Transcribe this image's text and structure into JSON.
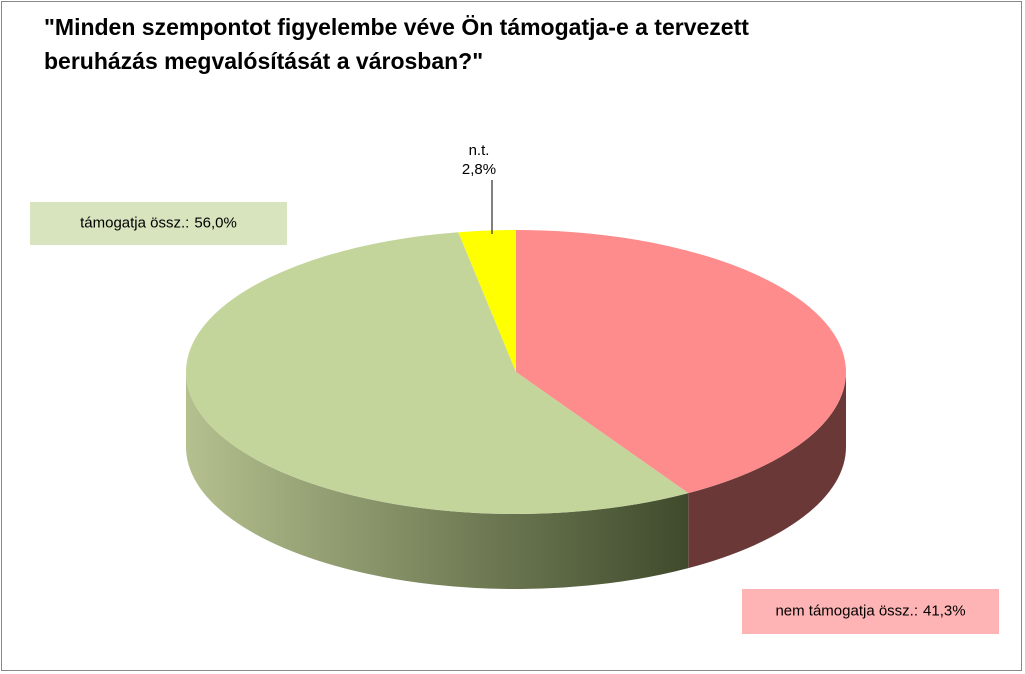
{
  "chart_data": {
    "type": "pie3d",
    "title": "\"Minden szempontot figyelembe véve Ön támogatja-e a tervezett beruházás megvalósítását a városban?\"",
    "categories": [
      "nem támogatja össz.:",
      "támogatja össz.:",
      "n.t."
    ],
    "values": [
      41.3,
      56.0,
      2.8
    ],
    "value_labels": [
      "41,3%",
      "56,0%",
      "2,8%"
    ],
    "colors": [
      "#fe8c8c",
      "#c3d59b",
      "#ffff00"
    ]
  }
}
